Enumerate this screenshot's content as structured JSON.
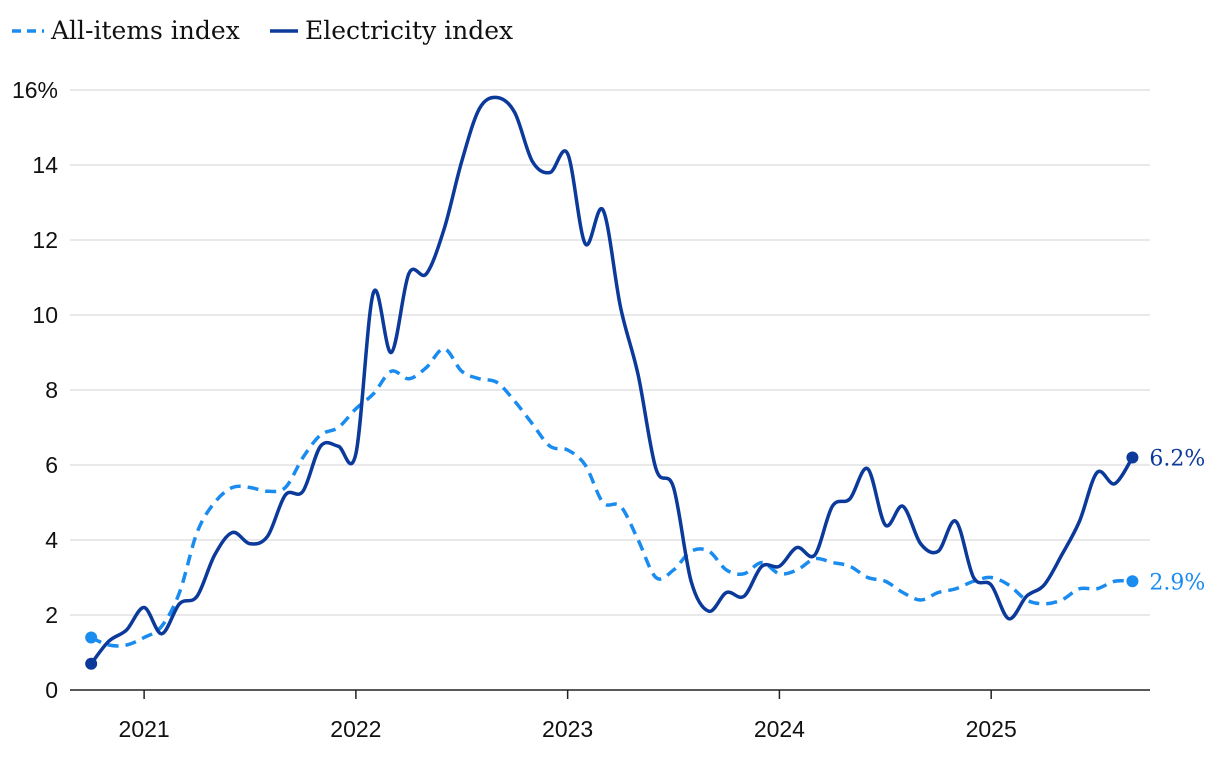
{
  "chart_data": {
    "type": "line",
    "title": "",
    "xlabel": "",
    "ylabel": "",
    "ylim": [
      0,
      16
    ],
    "yticks": [
      0,
      2,
      4,
      6,
      8,
      10,
      12,
      14,
      16
    ],
    "ytick_labels": [
      "0",
      "2",
      "4",
      "6",
      "8",
      "10",
      "12",
      "14",
      "16%"
    ],
    "xlim": [
      2020.65,
      2025.75
    ],
    "xticks": [
      2021,
      2022,
      2023,
      2024,
      2025
    ],
    "xtick_labels": [
      "2021",
      "2022",
      "2023",
      "2024",
      "2025"
    ],
    "grid": true,
    "legend_position": "top-left",
    "series": [
      {
        "name": "All-items index",
        "style": "dashed",
        "color": "#1A8CF0",
        "end_label": "2.9%",
        "x": [
          2020.75,
          2020.833,
          2020.917,
          2021.0,
          2021.083,
          2021.167,
          2021.25,
          2021.333,
          2021.417,
          2021.5,
          2021.583,
          2021.667,
          2021.75,
          2021.833,
          2021.917,
          2022.0,
          2022.083,
          2022.167,
          2022.25,
          2022.333,
          2022.417,
          2022.5,
          2022.583,
          2022.667,
          2022.75,
          2022.833,
          2022.917,
          2023.0,
          2023.083,
          2023.167,
          2023.25,
          2023.333,
          2023.417,
          2023.5,
          2023.583,
          2023.667,
          2023.75,
          2023.833,
          2023.917,
          2024.0,
          2024.083,
          2024.167,
          2024.25,
          2024.333,
          2024.417,
          2024.5,
          2024.583,
          2024.667,
          2024.75,
          2024.833,
          2024.917,
          2025.0,
          2025.083,
          2025.167,
          2025.25,
          2025.333,
          2025.417,
          2025.5,
          2025.583,
          2025.667
        ],
        "values": [
          1.4,
          1.2,
          1.2,
          1.4,
          1.7,
          2.6,
          4.2,
          5.0,
          5.4,
          5.4,
          5.3,
          5.4,
          6.2,
          6.8,
          7.0,
          7.5,
          7.9,
          8.5,
          8.3,
          8.6,
          9.1,
          8.5,
          8.3,
          8.2,
          7.7,
          7.1,
          6.5,
          6.4,
          6.0,
          5.0,
          4.9,
          4.0,
          3.0,
          3.2,
          3.7,
          3.7,
          3.2,
          3.1,
          3.4,
          3.1,
          3.2,
          3.5,
          3.4,
          3.3,
          3.0,
          2.9,
          2.6,
          2.4,
          2.6,
          2.7,
          2.9,
          3.0,
          2.8,
          2.4,
          2.3,
          2.4,
          2.7,
          2.7,
          2.9,
          2.9
        ]
      },
      {
        "name": "Electricity index",
        "style": "solid",
        "color": "#0B3A9A",
        "end_label": "6.2%",
        "x": [
          2020.75,
          2020.833,
          2020.917,
          2021.0,
          2021.083,
          2021.167,
          2021.25,
          2021.333,
          2021.417,
          2021.5,
          2021.583,
          2021.667,
          2021.75,
          2021.833,
          2021.917,
          2022.0,
          2022.083,
          2022.167,
          2022.25,
          2022.333,
          2022.417,
          2022.5,
          2022.583,
          2022.667,
          2022.75,
          2022.833,
          2022.917,
          2023.0,
          2023.083,
          2023.167,
          2023.25,
          2023.333,
          2023.417,
          2023.5,
          2023.583,
          2023.667,
          2023.75,
          2023.833,
          2023.917,
          2024.0,
          2024.083,
          2024.167,
          2024.25,
          2024.333,
          2024.417,
          2024.5,
          2024.583,
          2024.667,
          2024.75,
          2024.833,
          2024.917,
          2025.0,
          2025.083,
          2025.167,
          2025.25,
          2025.333,
          2025.417,
          2025.5,
          2025.583,
          2025.667
        ],
        "values": [
          0.7,
          1.3,
          1.6,
          2.2,
          1.5,
          2.3,
          2.5,
          3.6,
          4.2,
          3.9,
          4.1,
          5.2,
          5.3,
          6.5,
          6.5,
          6.3,
          10.6,
          9.0,
          11.1,
          11.1,
          12.3,
          14.1,
          15.5,
          15.8,
          15.4,
          14.1,
          13.8,
          14.3,
          11.9,
          12.8,
          10.2,
          8.4,
          5.9,
          5.4,
          2.9,
          2.1,
          2.6,
          2.5,
          3.3,
          3.3,
          3.8,
          3.6,
          4.9,
          5.1,
          5.9,
          4.4,
          4.9,
          3.9,
          3.7,
          4.5,
          3.0,
          2.8,
          1.9,
          2.5,
          2.8,
          3.6,
          4.5,
          5.8,
          5.5,
          6.2
        ]
      }
    ]
  }
}
